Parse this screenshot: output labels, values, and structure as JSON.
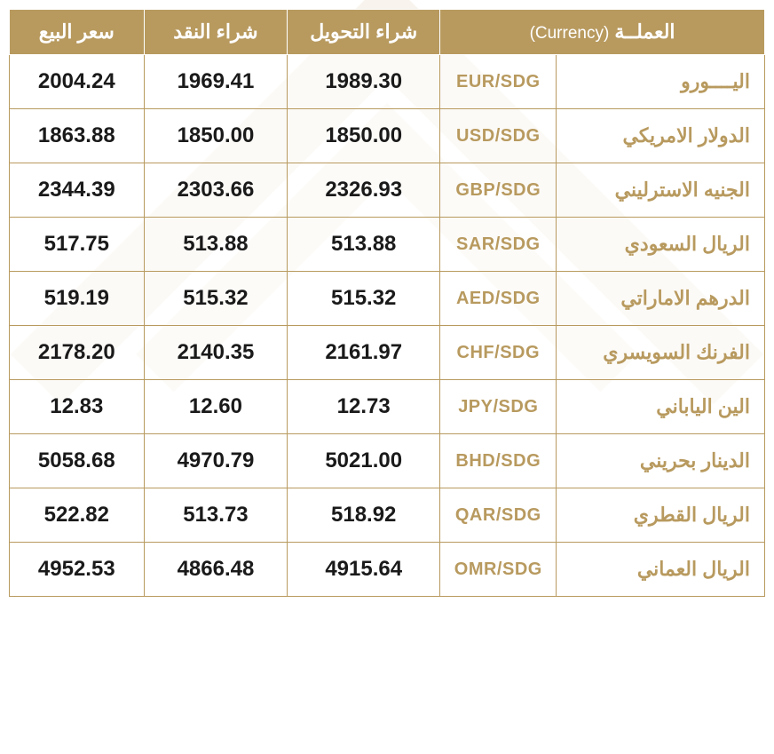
{
  "table": {
    "type": "table",
    "background_color": "#ffffff",
    "header_bg": "#b89a5f",
    "header_text_color": "#ffffff",
    "border_color": "#b89a5f",
    "value_text_color": "#1a1a1a",
    "code_text_color": "#b89a5f",
    "name_text_color": "#b89a5f",
    "header_fontsize": 22,
    "value_fontsize": 24,
    "code_fontsize": 20,
    "name_fontsize": 22,
    "columns": {
      "sell": "سعر البيع",
      "cash": "شراء النقد",
      "transfer": "شراء التحويل",
      "currency_ar": "العملــة",
      "currency_en": "(Currency)"
    },
    "rows": [
      {
        "name": "اليــــورو",
        "code": "EUR/SDG",
        "transfer": "1989.30",
        "cash": "1969.41",
        "sell": "2004.24"
      },
      {
        "name": "الدولار الامريكي",
        "code": "USD/SDG",
        "transfer": "1850.00",
        "cash": "1850.00",
        "sell": "1863.88"
      },
      {
        "name": "الجنيه الاسترليني",
        "code": "GBP/SDG",
        "transfer": "2326.93",
        "cash": "2303.66",
        "sell": "2344.39"
      },
      {
        "name": "الريال السعودي",
        "code": "SAR/SDG",
        "transfer": "513.88",
        "cash": "513.88",
        "sell": "517.75"
      },
      {
        "name": "الدرهم الاماراتي",
        "code": "AED/SDG",
        "transfer": "515.32",
        "cash": "515.32",
        "sell": "519.19"
      },
      {
        "name": "الفرنك السويسري",
        "code": "CHF/SDG",
        "transfer": "2161.97",
        "cash": "2140.35",
        "sell": "2178.20"
      },
      {
        "name": "الين الياباني",
        "code": "JPY/SDG",
        "transfer": "12.73",
        "cash": "12.60",
        "sell": "12.83"
      },
      {
        "name": "الدينار بحريني",
        "code": "BHD/SDG",
        "transfer": "5021.00",
        "cash": "4970.79",
        "sell": "5058.68"
      },
      {
        "name": "الريال القطري",
        "code": "QAR/SDG",
        "transfer": "518.92",
        "cash": "513.73",
        "sell": "522.82"
      },
      {
        "name": "الريال العماني",
        "code": "OMR/SDG",
        "transfer": "4915.64",
        "cash": "4866.48",
        "sell": "4952.53"
      }
    ]
  }
}
